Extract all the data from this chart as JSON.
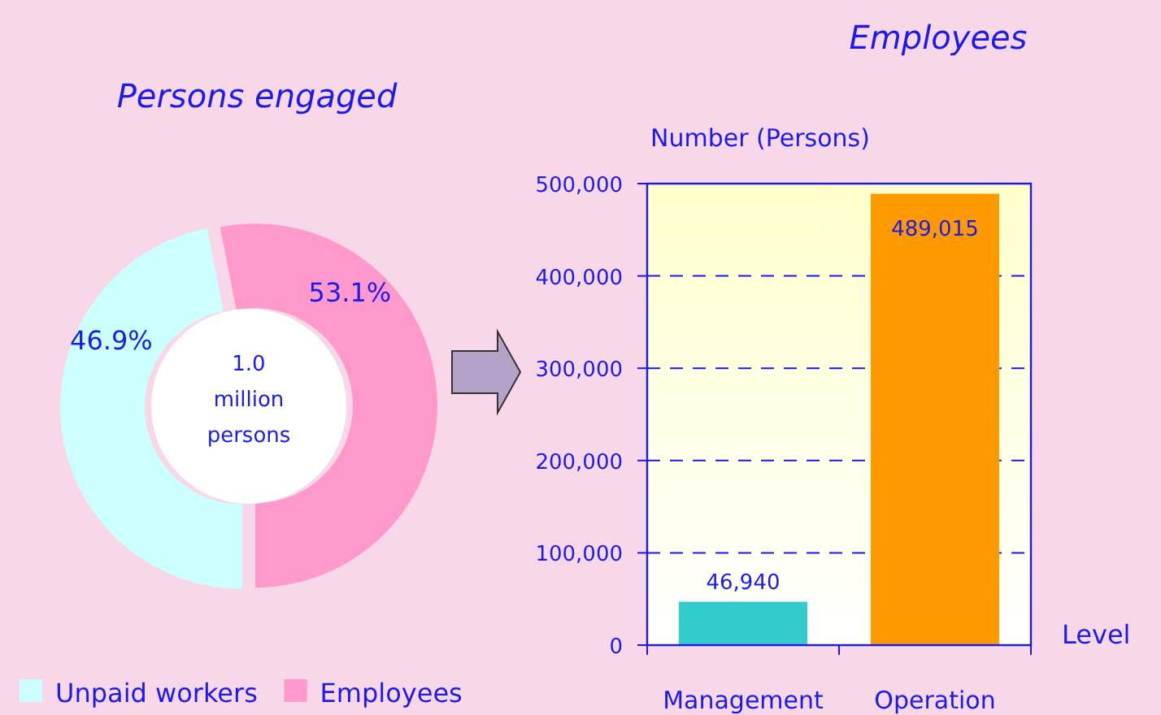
{
  "chart_data": [
    {
      "type": "donut",
      "title": "Persons engaged",
      "categories": [
        "Unpaid workers",
        "Employees"
      ],
      "values": [
        46.9,
        53.1
      ],
      "colors": [
        "#ccffff",
        "#ff99cc"
      ],
      "value_labels": [
        "46.9%",
        "53.1%"
      ],
      "legend": "bottom",
      "annotations": [
        "1.0 million persons"
      ]
    },
    {
      "type": "bar",
      "title": "Employees",
      "ylabel": "Number (Persons)",
      "xlabel": "Level",
      "categories": [
        "Management",
        "Operation"
      ],
      "values": [
        46940,
        489015
      ],
      "colors": [
        "#33cccc",
        "#ff9900"
      ],
      "ylim": [
        0,
        500000
      ],
      "yticks": [
        {
          "value": 0,
          "label": "0"
        },
        {
          "value": 100000,
          "label": "100,000"
        },
        {
          "value": 200000,
          "label": "200,000"
        },
        {
          "value": 300000,
          "label": "300,000"
        },
        {
          "value": 400000,
          "label": "400,000"
        },
        {
          "value": 500000,
          "label": "500,000"
        }
      ],
      "value_labels": [
        "46,940",
        "489,015"
      ],
      "grid": "y"
    }
  ]
}
